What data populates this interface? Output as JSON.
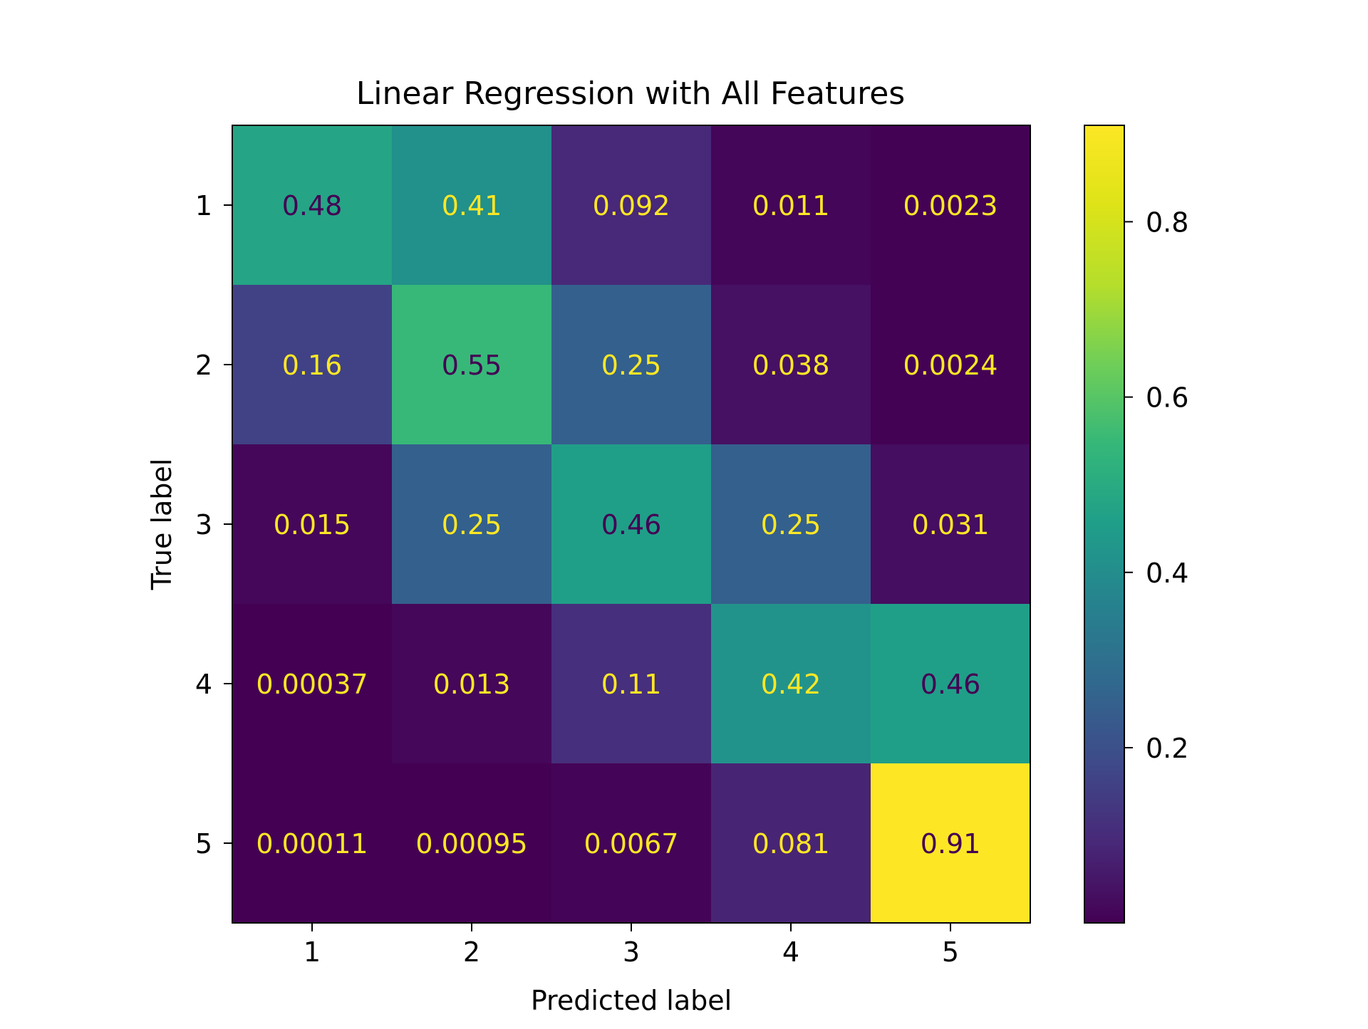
{
  "chart_data": {
    "type": "heatmap",
    "title": "Linear Regression with All Features",
    "xlabel": "Predicted label",
    "ylabel": "True label",
    "x_categories": [
      "1",
      "2",
      "3",
      "4",
      "5"
    ],
    "y_categories": [
      "1",
      "2",
      "3",
      "4",
      "5"
    ],
    "values": [
      [
        0.48,
        0.41,
        0.092,
        0.011,
        0.0023
      ],
      [
        0.16,
        0.55,
        0.25,
        0.038,
        0.0024
      ],
      [
        0.015,
        0.25,
        0.46,
        0.25,
        0.031
      ],
      [
        0.00037,
        0.013,
        0.11,
        0.42,
        0.46
      ],
      [
        0.00011,
        0.00095,
        0.0067,
        0.081,
        0.91
      ]
    ],
    "cell_labels": [
      [
        "0.48",
        "0.41",
        "0.092",
        "0.011",
        "0.0023"
      ],
      [
        "0.16",
        "0.55",
        "0.25",
        "0.038",
        "0.0024"
      ],
      [
        "0.015",
        "0.25",
        "0.46",
        "0.25",
        "0.031"
      ],
      [
        "0.00037",
        "0.013",
        "0.11",
        "0.42",
        "0.46"
      ],
      [
        "0.00011",
        "0.00095",
        "0.0067",
        "0.081",
        "0.91"
      ]
    ],
    "colormap": "viridis",
    "color_range": [
      0.00011,
      0.91
    ],
    "colorbar_ticks": [
      "0.2",
      "0.4",
      "0.6",
      "0.8"
    ],
    "colorbar_tick_values": [
      0.2,
      0.4,
      0.6,
      0.8
    ],
    "label_colors": {
      "on_dark": "#fde725",
      "on_light": "#440154"
    },
    "grid": false
  }
}
